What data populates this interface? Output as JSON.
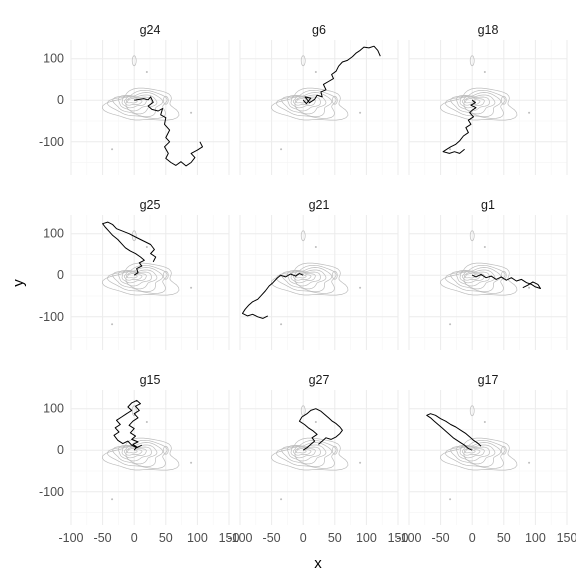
{
  "chart_data": {
    "type": "line",
    "layout": "facet-grid 3x3",
    "xlabel": "x",
    "ylabel": "y",
    "xlim": [
      -100,
      150
    ],
    "ylim": [
      -180,
      145
    ],
    "x_ticks": [
      -100,
      -50,
      0,
      50,
      100,
      150
    ],
    "x_tick_labels": [
      "-100",
      "-50",
      "0",
      "50",
      "100",
      "150"
    ],
    "y_ticks": [
      100,
      0,
      -100
    ],
    "y_tick_labels": [
      "100",
      "0",
      "-100"
    ],
    "grid": true,
    "colors": {
      "background": "#ffffff",
      "grid_major": "#ebebeb",
      "grid_minor": "#f5f5f5",
      "contour": "#bdbdbd",
      "path": "#000000"
    },
    "background_layer": {
      "type": "density-contours",
      "note_center": [
        0,
        0
      ],
      "outliers": [
        [
          20,
          68
        ],
        [
          90,
          -30
        ],
        [
          -35,
          -118
        ]
      ]
    },
    "panels": [
      {
        "title": "g24",
        "path": [
          [
            0,
            0
          ],
          [
            8,
            2
          ],
          [
            15,
            4
          ],
          [
            22,
            1
          ],
          [
            26,
            8
          ],
          [
            30,
            -5
          ],
          [
            22,
            -14
          ],
          [
            28,
            -22
          ],
          [
            38,
            -26
          ],
          [
            45,
            -20
          ],
          [
            42,
            -35
          ],
          [
            50,
            -42
          ],
          [
            48,
            -58
          ],
          [
            56,
            -72
          ],
          [
            50,
            -90
          ],
          [
            56,
            -100
          ],
          [
            48,
            -112
          ],
          [
            54,
            -128
          ],
          [
            50,
            -140
          ],
          [
            58,
            -150
          ],
          [
            66,
            -157
          ],
          [
            74,
            -148
          ],
          [
            82,
            -158
          ],
          [
            90,
            -150
          ],
          [
            96,
            -138
          ],
          [
            90,
            -128
          ],
          [
            100,
            -120
          ],
          [
            108,
            -112
          ],
          [
            104,
            -100
          ]
        ]
      },
      {
        "title": "g6",
        "path": [
          [
            0,
            0
          ],
          [
            5,
            -8
          ],
          [
            12,
            5
          ],
          [
            3,
            8
          ],
          [
            10,
            -6
          ],
          [
            18,
            2
          ],
          [
            22,
            12
          ],
          [
            30,
            8
          ],
          [
            28,
            20
          ],
          [
            36,
            25
          ],
          [
            32,
            38
          ],
          [
            40,
            45
          ],
          [
            48,
            52
          ],
          [
            45,
            62
          ],
          [
            52,
            70
          ],
          [
            56,
            82
          ],
          [
            62,
            92
          ],
          [
            70,
            96
          ],
          [
            78,
            105
          ],
          [
            84,
            114
          ],
          [
            90,
            120
          ],
          [
            96,
            128
          ],
          [
            104,
            126
          ],
          [
            112,
            130
          ],
          [
            118,
            120
          ],
          [
            122,
            106
          ]
        ]
      },
      {
        "title": "g18",
        "path": [
          [
            0,
            0
          ],
          [
            5,
            -6
          ],
          [
            -2,
            -12
          ],
          [
            6,
            -18
          ],
          [
            0,
            -24
          ],
          [
            -4,
            -30
          ],
          [
            2,
            -40
          ],
          [
            -6,
            -48
          ],
          [
            -2,
            -58
          ],
          [
            -10,
            -66
          ],
          [
            -6,
            -78
          ],
          [
            -14,
            -86
          ],
          [
            -20,
            -98
          ],
          [
            -26,
            -106
          ],
          [
            -34,
            -112
          ],
          [
            -40,
            -118
          ],
          [
            -46,
            -124
          ],
          [
            -36,
            -128
          ],
          [
            -28,
            -124
          ],
          [
            -20,
            -128
          ],
          [
            -12,
            -118
          ]
        ]
      },
      {
        "title": "g25",
        "path": [
          [
            0,
            0
          ],
          [
            6,
            6
          ],
          [
            4,
            16
          ],
          [
            12,
            22
          ],
          [
            8,
            30
          ],
          [
            16,
            36
          ],
          [
            10,
            44
          ],
          [
            2,
            52
          ],
          [
            -6,
            58
          ],
          [
            -14,
            66
          ],
          [
            -20,
            76
          ],
          [
            -26,
            86
          ],
          [
            -34,
            96
          ],
          [
            -40,
            106
          ],
          [
            -46,
            116
          ],
          [
            -50,
            124
          ],
          [
            -42,
            128
          ],
          [
            -34,
            122
          ],
          [
            -28,
            112
          ],
          [
            -18,
            106
          ],
          [
            -8,
            100
          ],
          [
            2,
            92
          ],
          [
            10,
            86
          ],
          [
            18,
            80
          ],
          [
            26,
            74
          ],
          [
            32,
            62
          ],
          [
            26,
            52
          ],
          [
            34,
            44
          ],
          [
            30,
            32
          ]
        ]
      },
      {
        "title": "g21",
        "path": [
          [
            0,
            0
          ],
          [
            -6,
            4
          ],
          [
            -12,
            -2
          ],
          [
            -20,
            3
          ],
          [
            -28,
            -4
          ],
          [
            -36,
            0
          ],
          [
            -42,
            -8
          ],
          [
            -48,
            -18
          ],
          [
            -54,
            -26
          ],
          [
            -60,
            -38
          ],
          [
            -66,
            -48
          ],
          [
            -72,
            -58
          ],
          [
            -80,
            -64
          ],
          [
            -86,
            -72
          ],
          [
            -92,
            -82
          ],
          [
            -96,
            -92
          ],
          [
            -88,
            -98
          ],
          [
            -80,
            -94
          ],
          [
            -72,
            -100
          ],
          [
            -64,
            -104
          ],
          [
            -56,
            -98
          ]
        ]
      },
      {
        "title": "g1",
        "path": [
          [
            0,
            0
          ],
          [
            6,
            -4
          ],
          [
            14,
            2
          ],
          [
            22,
            -6
          ],
          [
            30,
            -2
          ],
          [
            38,
            -10
          ],
          [
            46,
            -4
          ],
          [
            54,
            -12
          ],
          [
            62,
            -6
          ],
          [
            70,
            -14
          ],
          [
            78,
            -10
          ],
          [
            86,
            -18
          ],
          [
            94,
            -22
          ],
          [
            100,
            -28
          ],
          [
            108,
            -32
          ],
          [
            104,
            -22
          ],
          [
            96,
            -16
          ],
          [
            88,
            -24
          ],
          [
            80,
            -30
          ]
        ]
      },
      {
        "title": "g15",
        "path": [
          [
            0,
            0
          ],
          [
            4,
            8
          ],
          [
            -2,
            14
          ],
          [
            6,
            20
          ],
          [
            -4,
            26
          ],
          [
            2,
            34
          ],
          [
            -6,
            42
          ],
          [
            0,
            52
          ],
          [
            -8,
            60
          ],
          [
            -2,
            70
          ],
          [
            6,
            78
          ],
          [
            0,
            88
          ],
          [
            8,
            96
          ],
          [
            2,
            106
          ],
          [
            10,
            112
          ],
          [
            4,
            120
          ],
          [
            -4,
            114
          ],
          [
            -10,
            104
          ],
          [
            -4,
            96
          ],
          [
            -12,
            88
          ],
          [
            -20,
            80
          ],
          [
            -28,
            72
          ],
          [
            -22,
            62
          ],
          [
            -30,
            54
          ],
          [
            -24,
            44
          ],
          [
            -32,
            36
          ],
          [
            -26,
            24
          ],
          [
            -18,
            16
          ],
          [
            -10,
            22
          ],
          [
            -4,
            12
          ],
          [
            4,
            6
          ],
          [
            12,
            12
          ]
        ]
      },
      {
        "title": "g27",
        "path": [
          [
            0,
            0
          ],
          [
            6,
            6
          ],
          [
            12,
            14
          ],
          [
            18,
            22
          ],
          [
            14,
            30
          ],
          [
            22,
            38
          ],
          [
            16,
            46
          ],
          [
            8,
            54
          ],
          [
            2,
            62
          ],
          [
            -6,
            70
          ],
          [
            -2,
            80
          ],
          [
            6,
            88
          ],
          [
            12,
            96
          ],
          [
            20,
            100
          ],
          [
            28,
            94
          ],
          [
            34,
            86
          ],
          [
            40,
            78
          ],
          [
            46,
            70
          ],
          [
            52,
            64
          ],
          [
            58,
            56
          ],
          [
            62,
            48
          ],
          [
            58,
            40
          ],
          [
            52,
            32
          ],
          [
            44,
            26
          ],
          [
            36,
            30
          ],
          [
            30,
            22
          ],
          [
            24,
            14
          ]
        ]
      },
      {
        "title": "g17",
        "path": [
          [
            0,
            0
          ],
          [
            -6,
            4
          ],
          [
            -12,
            12
          ],
          [
            -18,
            18
          ],
          [
            -24,
            24
          ],
          [
            -30,
            30
          ],
          [
            -36,
            38
          ],
          [
            -42,
            46
          ],
          [
            -48,
            54
          ],
          [
            -54,
            62
          ],
          [
            -60,
            70
          ],
          [
            -66,
            78
          ],
          [
            -72,
            84
          ],
          [
            -66,
            88
          ],
          [
            -58,
            84
          ],
          [
            -50,
            76
          ],
          [
            -42,
            70
          ],
          [
            -34,
            62
          ],
          [
            -26,
            56
          ],
          [
            -18,
            48
          ],
          [
            -10,
            40
          ],
          [
            -4,
            32
          ],
          [
            2,
            24
          ],
          [
            8,
            18
          ],
          [
            14,
            10
          ]
        ]
      }
    ]
  }
}
